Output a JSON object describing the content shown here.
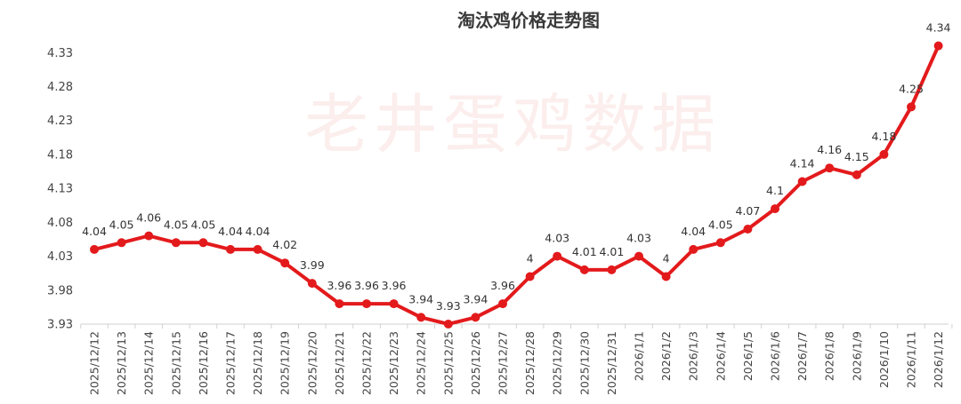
{
  "chart_data": {
    "type": "line",
    "title": "淘汰鸡价格走势图",
    "watermark": "老井蛋鸡数据",
    "xlabel": "",
    "ylabel": "",
    "ylim": [
      3.93,
      4.35
    ],
    "yticks": [
      "3.93",
      "3.98",
      "4.03",
      "4.08",
      "4.13",
      "4.18",
      "4.23",
      "4.28",
      "4.33"
    ],
    "grid": false,
    "legend": "none",
    "line_color": "#e31a1c",
    "categories": [
      "2025/12/12",
      "2025/12/13",
      "2025/12/14",
      "2025/12/15",
      "2025/12/16",
      "2025/12/17",
      "2025/12/18",
      "2025/12/19",
      "2025/12/20",
      "2025/12/21",
      "2025/12/22",
      "2025/12/23",
      "2025/12/24",
      "2025/12/25",
      "2025/12/26",
      "2025/12/27",
      "2025/12/28",
      "2025/12/29",
      "2025/12/30",
      "2025/12/31",
      "2026/1/1",
      "2026/1/2",
      "2026/1/3",
      "2026/1/4",
      "2026/1/5",
      "2026/1/6",
      "2026/1/7",
      "2026/1/8",
      "2026/1/9",
      "2026/1/10",
      "2026/1/11",
      "2026/1/12"
    ],
    "values": [
      4.04,
      4.05,
      4.06,
      4.05,
      4.05,
      4.04,
      4.04,
      4.02,
      3.99,
      3.96,
      3.96,
      3.96,
      3.94,
      3.93,
      3.94,
      3.96,
      4,
      4.03,
      4.01,
      4.01,
      4.03,
      4,
      4.04,
      4.05,
      4.07,
      4.1,
      4.14,
      4.16,
      4.15,
      4.18,
      4.25,
      4.34
    ],
    "labels": [
      "4.04",
      "4.05",
      "4.06",
      "4.05",
      "4.05",
      "4.04",
      "4.04",
      "4.02",
      "3.99",
      "3.96",
      "3.96",
      "3.96",
      "3.94",
      "3.93",
      "3.94",
      "3.96",
      "4",
      "4.03",
      "4.01",
      "4.01",
      "4.03",
      "4",
      "4.04",
      "4.05",
      "4.07",
      "4.1",
      "4.14",
      "4.16",
      "4.15",
      "4.18",
      "4.25",
      "4.34"
    ]
  }
}
